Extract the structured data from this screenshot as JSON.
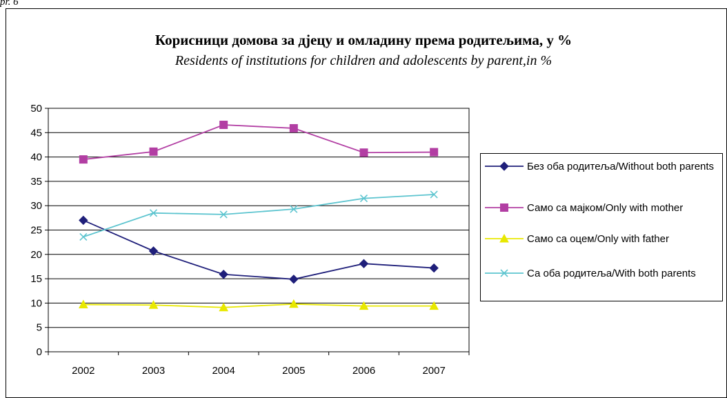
{
  "corner_label": "pr. 6",
  "chart_data": {
    "type": "line",
    "title": "Корисници домова за дјецу и омладину према родитељима, у %",
    "subtitle": "Residents of institutions for children and adolescents by parent,in %",
    "categories": [
      "2002",
      "2003",
      "2004",
      "2005",
      "2006",
      "2007"
    ],
    "ylim": [
      0,
      50
    ],
    "yticks": [
      0,
      5,
      10,
      15,
      20,
      25,
      30,
      35,
      40,
      45,
      50
    ],
    "grid": true,
    "legend_position": "right",
    "series": [
      {
        "name": "Без оба родитеља/Without both parents",
        "color": "#1f1f7a",
        "marker": "diamond",
        "values": [
          27.0,
          20.7,
          15.9,
          14.9,
          18.1,
          17.2
        ]
      },
      {
        "name": "Само са мајком/Only with mother",
        "color": "#b23ea3",
        "marker": "square",
        "values": [
          39.5,
          41.1,
          46.6,
          45.9,
          40.9,
          41.0
        ]
      },
      {
        "name": "Само са оцем/Only with father",
        "color": "#e8e800",
        "marker": "triangle",
        "values": [
          9.7,
          9.6,
          9.1,
          9.8,
          9.4,
          9.4
        ]
      },
      {
        "name": "Са оба родитеља/With both parents",
        "color": "#5cc4cf",
        "marker": "x",
        "values": [
          23.6,
          28.5,
          28.2,
          29.3,
          31.5,
          32.3
        ]
      }
    ]
  }
}
